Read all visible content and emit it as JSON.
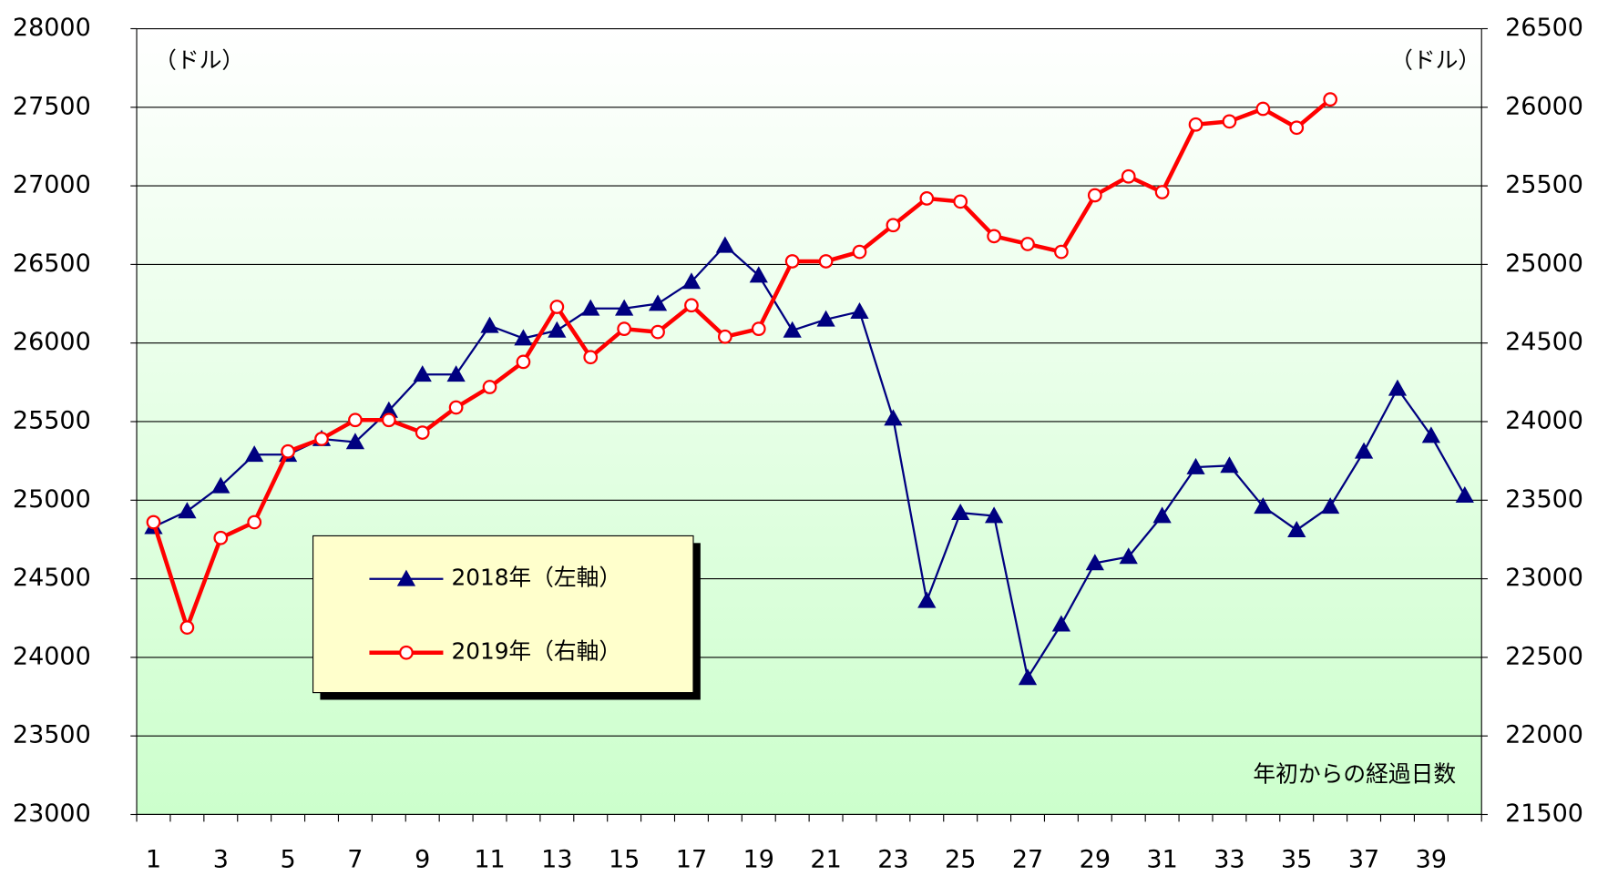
{
  "chart_data": {
    "type": "line",
    "categories": [
      "1",
      null,
      "3",
      null,
      "5",
      null,
      "7",
      null,
      "9",
      null,
      "11",
      null,
      "13",
      null,
      "15",
      null,
      "17",
      null,
      "19",
      null,
      "21",
      null,
      "23",
      null,
      "25",
      null,
      "27",
      null,
      "29",
      null,
      "31",
      null,
      "33",
      null,
      "35",
      null,
      "37",
      null,
      "39",
      null
    ],
    "series": [
      {
        "name": "2018年（左軸）",
        "color": "#000080",
        "marker": "triangle",
        "axis": "y",
        "values": [
          24830,
          24930,
          25090,
          25290,
          25290,
          25390,
          25370,
          25570,
          25800,
          25800,
          26110,
          26030,
          26080,
          26220,
          26220,
          26250,
          26390,
          26620,
          26430,
          26080,
          26150,
          26200,
          25520,
          24360,
          24920,
          24900,
          23870,
          24210,
          24600,
          24640,
          24900,
          25210,
          25220,
          24960,
          24810,
          24960,
          25310,
          25710,
          25410,
          25030
        ]
      },
      {
        "name": "2019年（右軸）",
        "color": "#ff0000",
        "marker": "circle",
        "axis": "y2",
        "values": [
          23360,
          22690,
          23260,
          23360,
          23810,
          23890,
          24010,
          24010,
          23930,
          24090,
          24220,
          24380,
          24730,
          24410,
          24590,
          24570,
          24740,
          24540,
          24590,
          25020,
          25020,
          25080,
          25250,
          25420,
          25400,
          25180,
          25130,
          25080,
          25440,
          25560,
          25460,
          25890,
          25910,
          25990,
          25870,
          26050,
          null,
          null,
          null,
          null
        ]
      }
    ],
    "ylim": [
      23000,
      28000
    ],
    "yticks": [
      23000,
      23500,
      24000,
      24500,
      25000,
      25500,
      26000,
      26500,
      27000,
      27500,
      28000
    ],
    "y2lim": [
      21500,
      26500
    ],
    "y2ticks": [
      21500,
      22000,
      22500,
      23000,
      23500,
      24000,
      24500,
      25000,
      25500,
      26000,
      26500
    ],
    "y_unit_label": "（ドル）",
    "y2_unit_label": "（ドル）",
    "x_annotation": "年初からの経過日数",
    "grid": true
  }
}
